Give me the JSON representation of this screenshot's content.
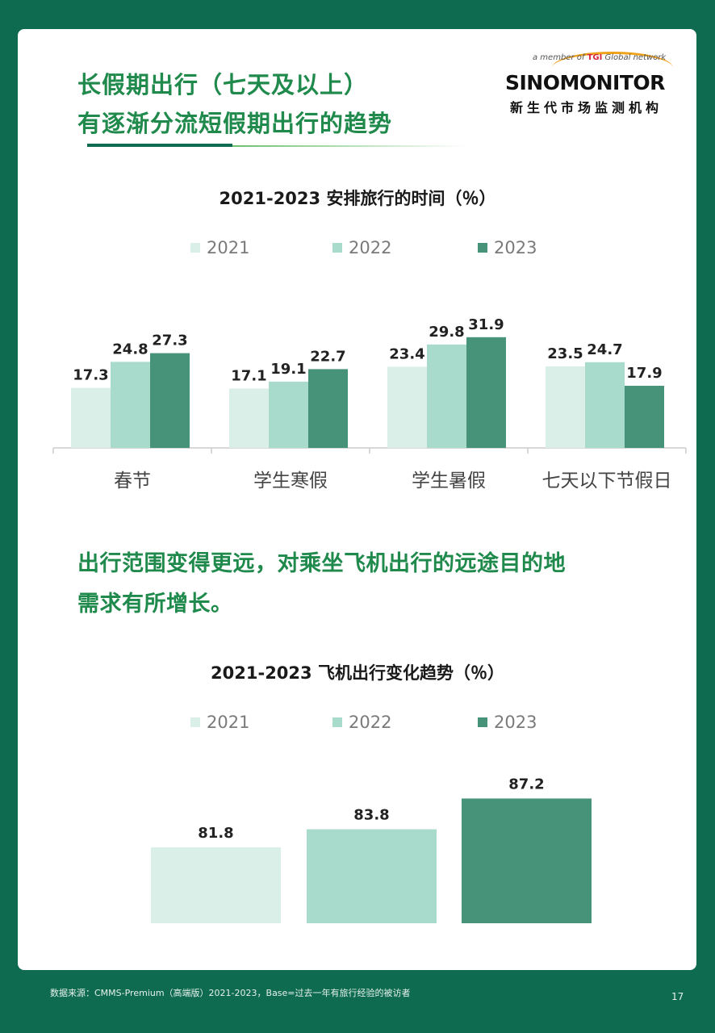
{
  "header": {
    "headline_line1": "长假期出行（七天及以上）",
    "headline_line2": "有逐渐分流短假期出行的趋势"
  },
  "logo": {
    "member_text_prefix": "a member of",
    "member_text_brand": "TGI",
    "member_text_suffix": "Global network",
    "name": "SINOMONITOR",
    "cn_name": "新生代市场监测机构"
  },
  "section": {
    "line1": "出行范围变得更远，对乘坐飞机出行的远途目的地",
    "line2": "需求有所增长。"
  },
  "colors": {
    "y2021": "#d9efe7",
    "y2022": "#a9dbcd",
    "y2023": "#46937a",
    "headline": "#1f8a4c",
    "page_bg": "#0e6b4f"
  },
  "chart_data": [
    {
      "type": "bar",
      "title": "2021-2023 安排旅行的时间（％）",
      "categories": [
        "春节",
        "学生寒假",
        "学生暑假",
        "七天以下节假日"
      ],
      "series": [
        {
          "name": "2021",
          "values": [
            17.3,
            17.1,
            23.4,
            23.5
          ]
        },
        {
          "name": "2022",
          "values": [
            24.8,
            19.1,
            29.8,
            24.7
          ]
        },
        {
          "name": "2023",
          "values": [
            27.3,
            22.7,
            31.9,
            17.9
          ]
        }
      ],
      "value_labels": [
        [
          "17.3",
          "17.1",
          "23.4",
          "23.5"
        ],
        [
          "24.8",
          "19.1",
          "29.8",
          "24.7"
        ],
        [
          "27.3",
          "22.7",
          "31.9",
          "17.9"
        ]
      ],
      "legend_position": "top",
      "grid": false
    },
    {
      "type": "bar",
      "title": "2021-2023 飞机出行变化趋势（％）",
      "categories": [
        "2021",
        "2022",
        "2023"
      ],
      "values": [
        81.8,
        83.8,
        87.2
      ],
      "value_labels": [
        "81.8",
        "83.8",
        "87.2"
      ],
      "legend_position": "top",
      "grid": false
    }
  ],
  "footer": {
    "source": "数据来源：CMMS-Premium（高端版）2021-2023，Base=过去一年有旅行经验的被访者",
    "page_number": "17"
  }
}
